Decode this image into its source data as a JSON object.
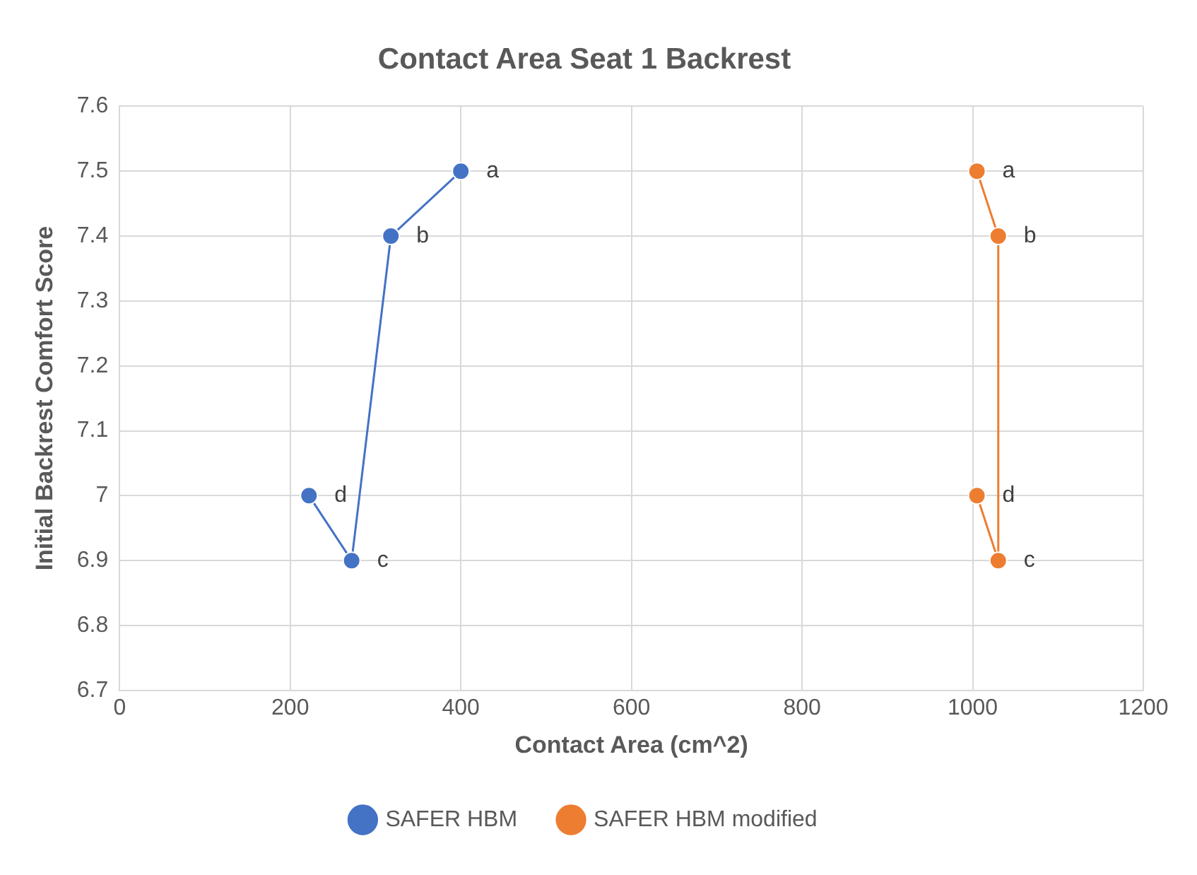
{
  "chart_data": {
    "type": "line",
    "title": "Contact Area Seat 1 Backrest",
    "xlabel": "Contact Area (cm^2)",
    "ylabel": "Initial Backrest Comfort Score",
    "series": [
      {
        "name": "SAFER HBM",
        "color": "#4472c4",
        "x": [
          400,
          318,
          272,
          222
        ],
        "values": [
          7.5,
          7.4,
          6.9,
          7.0
        ]
      },
      {
        "name": "SAFER HBM modified",
        "color": "#ed7d31",
        "x": [
          1005,
          1030,
          1030,
          1005
        ],
        "values": [
          7.5,
          7.4,
          6.9,
          7.0
        ]
      }
    ],
    "annotations": [
      {
        "text": "a",
        "x": 400,
        "y": 7.5
      },
      {
        "text": "b",
        "x": 318,
        "y": 7.4
      },
      {
        "text": "c",
        "x": 272,
        "y": 6.9
      },
      {
        "text": "d",
        "x": 222,
        "y": 7.0
      },
      {
        "text": "a",
        "x": 1005,
        "y": 7.5
      },
      {
        "text": "b",
        "x": 1030,
        "y": 7.4
      },
      {
        "text": "c",
        "x": 1030,
        "y": 6.9
      },
      {
        "text": "d",
        "x": 1005,
        "y": 7.0
      }
    ],
    "xlim": [
      0,
      1200
    ],
    "xticks": [
      0,
      200,
      400,
      600,
      800,
      1000,
      1200
    ],
    "ylim": [
      6.7,
      7.6
    ],
    "yticks": [
      6.7,
      6.8,
      6.9,
      7,
      7.1,
      7.2,
      7.3,
      7.4,
      7.5,
      7.6
    ],
    "grid": true,
    "legend": "bottom",
    "marker": "circle",
    "line_style": "solid"
  }
}
